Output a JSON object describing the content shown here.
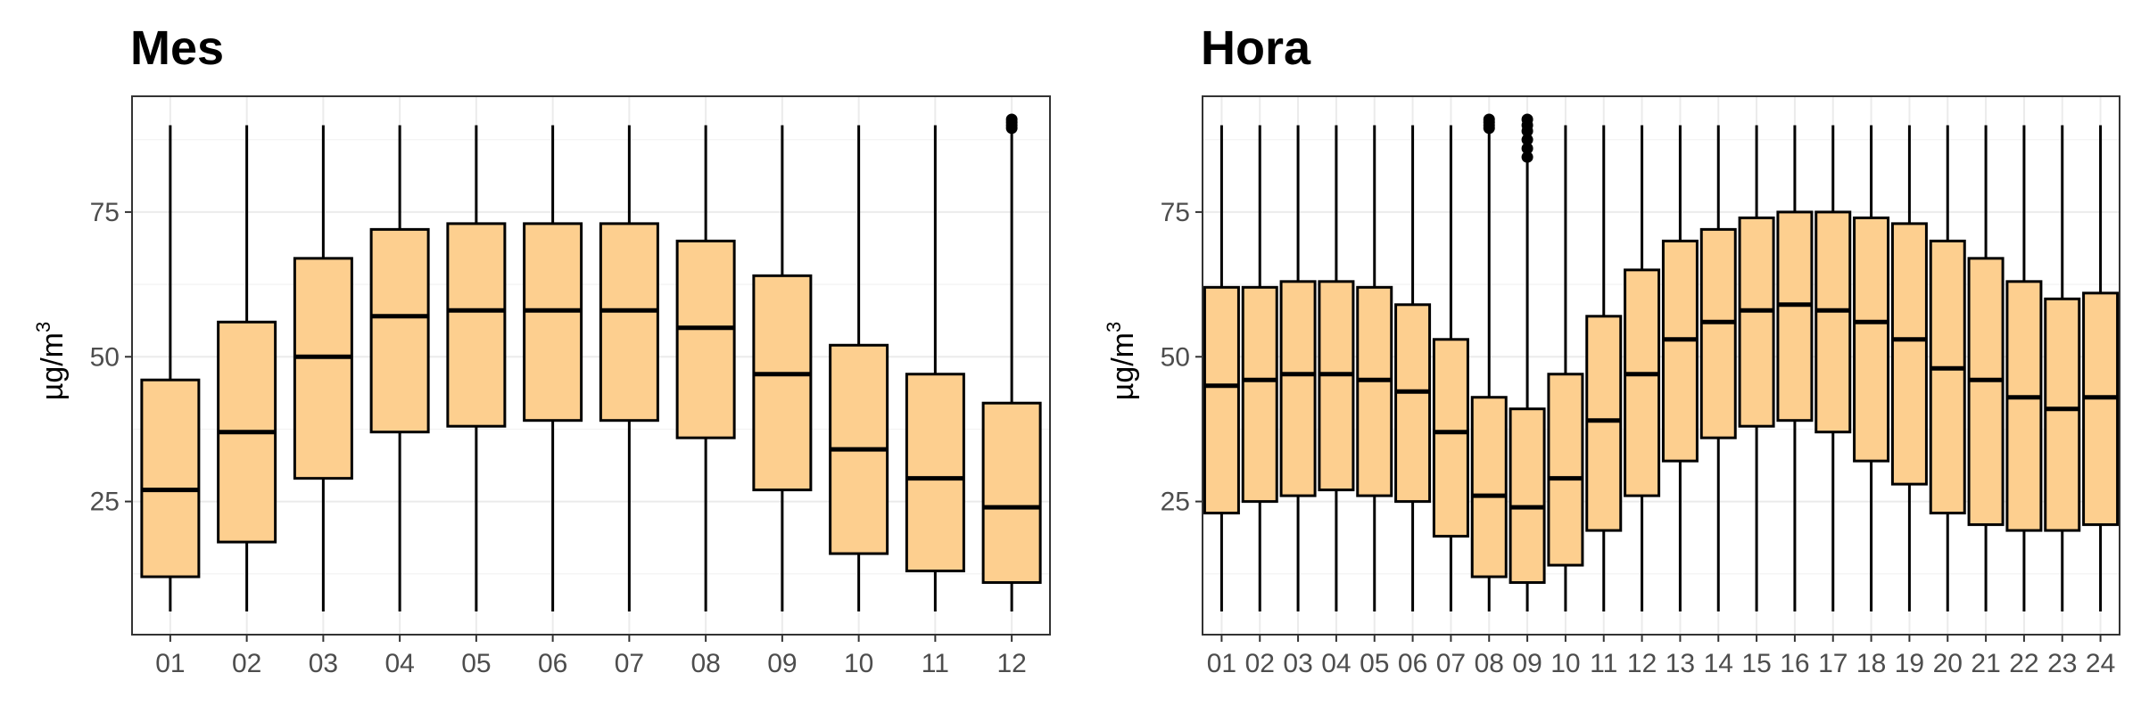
{
  "chart_data": [
    {
      "type": "box",
      "title": "Mes",
      "ylabel": "µg/m",
      "ylabel_sup": "3",
      "xlabel": "",
      "ylim": [
        2,
        95
      ],
      "yticks": [
        25,
        50,
        75
      ],
      "grid": true,
      "box_fill": "#fdcf8f",
      "categories": [
        "01",
        "02",
        "03",
        "04",
        "05",
        "06",
        "07",
        "08",
        "09",
        "10",
        "11",
        "12"
      ],
      "boxes": [
        {
          "whisker_low": 6,
          "q1": 12,
          "median": 27,
          "q3": 46,
          "whisker_high": 90
        },
        {
          "whisker_low": 6,
          "q1": 18,
          "median": 37,
          "q3": 56,
          "whisker_high": 90
        },
        {
          "whisker_low": 6,
          "q1": 29,
          "median": 50,
          "q3": 67,
          "whisker_high": 90
        },
        {
          "whisker_low": 6,
          "q1": 37,
          "median": 57,
          "q3": 72,
          "whisker_high": 90
        },
        {
          "whisker_low": 6,
          "q1": 38,
          "median": 58,
          "q3": 73,
          "whisker_high": 90
        },
        {
          "whisker_low": 6,
          "q1": 39,
          "median": 58,
          "q3": 73,
          "whisker_high": 90
        },
        {
          "whisker_low": 6,
          "q1": 39,
          "median": 58,
          "q3": 73,
          "whisker_high": 90
        },
        {
          "whisker_low": 6,
          "q1": 36,
          "median": 55,
          "q3": 70,
          "whisker_high": 90
        },
        {
          "whisker_low": 6,
          "q1": 27,
          "median": 47,
          "q3": 64,
          "whisker_high": 90
        },
        {
          "whisker_low": 6,
          "q1": 16,
          "median": 34,
          "q3": 52,
          "whisker_high": 90
        },
        {
          "whisker_low": 6,
          "q1": 13,
          "median": 29,
          "q3": 47,
          "whisker_high": 90
        },
        {
          "whisker_low": 6,
          "q1": 11,
          "median": 24,
          "q3": 42,
          "whisker_high": 89,
          "outliers": [
            89.5,
            90,
            90.5,
            91
          ]
        }
      ]
    },
    {
      "type": "box",
      "title": "Hora",
      "ylabel": "µg/m",
      "ylabel_sup": "3",
      "xlabel": "",
      "ylim": [
        2,
        95
      ],
      "yticks": [
        25,
        50,
        75
      ],
      "grid": true,
      "box_fill": "#fdcf8f",
      "categories": [
        "01",
        "02",
        "03",
        "04",
        "05",
        "06",
        "07",
        "08",
        "09",
        "10",
        "11",
        "12",
        "13",
        "14",
        "15",
        "16",
        "17",
        "18",
        "19",
        "20",
        "21",
        "22",
        "23",
        "24"
      ],
      "boxes": [
        {
          "whisker_low": 6,
          "q1": 23,
          "median": 45,
          "q3": 62,
          "whisker_high": 90
        },
        {
          "whisker_low": 6,
          "q1": 25,
          "median": 46,
          "q3": 62,
          "whisker_high": 90
        },
        {
          "whisker_low": 6,
          "q1": 26,
          "median": 47,
          "q3": 63,
          "whisker_high": 90
        },
        {
          "whisker_low": 6,
          "q1": 27,
          "median": 47,
          "q3": 63,
          "whisker_high": 90
        },
        {
          "whisker_low": 6,
          "q1": 26,
          "median": 46,
          "q3": 62,
          "whisker_high": 90
        },
        {
          "whisker_low": 6,
          "q1": 25,
          "median": 44,
          "q3": 59,
          "whisker_high": 90
        },
        {
          "whisker_low": 6,
          "q1": 19,
          "median": 37,
          "q3": 53,
          "whisker_high": 90
        },
        {
          "whisker_low": 6,
          "q1": 12,
          "median": 26,
          "q3": 43,
          "whisker_high": 89,
          "outliers": [
            89.5,
            90,
            90.5,
            91
          ]
        },
        {
          "whisker_low": 6,
          "q1": 11,
          "median": 24,
          "q3": 41,
          "whisker_high": 84,
          "outliers": [
            84.5,
            86,
            87.5,
            89,
            90,
            91
          ]
        },
        {
          "whisker_low": 6,
          "q1": 14,
          "median": 29,
          "q3": 47,
          "whisker_high": 90
        },
        {
          "whisker_low": 6,
          "q1": 20,
          "median": 39,
          "q3": 57,
          "whisker_high": 90
        },
        {
          "whisker_low": 6,
          "q1": 26,
          "median": 47,
          "q3": 65,
          "whisker_high": 90
        },
        {
          "whisker_low": 6,
          "q1": 32,
          "median": 53,
          "q3": 70,
          "whisker_high": 90
        },
        {
          "whisker_low": 6,
          "q1": 36,
          "median": 56,
          "q3": 72,
          "whisker_high": 90
        },
        {
          "whisker_low": 6,
          "q1": 38,
          "median": 58,
          "q3": 74,
          "whisker_high": 90
        },
        {
          "whisker_low": 6,
          "q1": 39,
          "median": 59,
          "q3": 75,
          "whisker_high": 90
        },
        {
          "whisker_low": 6,
          "q1": 37,
          "median": 58,
          "q3": 75,
          "whisker_high": 90
        },
        {
          "whisker_low": 6,
          "q1": 32,
          "median": 56,
          "q3": 74,
          "whisker_high": 90
        },
        {
          "whisker_low": 6,
          "q1": 28,
          "median": 53,
          "q3": 73,
          "whisker_high": 90
        },
        {
          "whisker_low": 6,
          "q1": 23,
          "median": 48,
          "q3": 70,
          "whisker_high": 90
        },
        {
          "whisker_low": 6,
          "q1": 21,
          "median": 46,
          "q3": 67,
          "whisker_high": 90
        },
        {
          "whisker_low": 6,
          "q1": 20,
          "median": 43,
          "q3": 63,
          "whisker_high": 90
        },
        {
          "whisker_low": 6,
          "q1": 20,
          "median": 41,
          "q3": 60,
          "whisker_high": 90
        },
        {
          "whisker_low": 6,
          "q1": 21,
          "median": 43,
          "q3": 61,
          "whisker_high": 90
        }
      ]
    }
  ]
}
